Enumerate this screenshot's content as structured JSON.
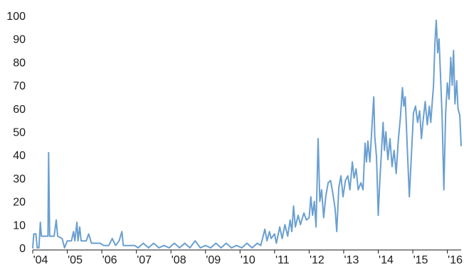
{
  "chart_data": {
    "type": "line",
    "title": "",
    "xlabel": "",
    "ylabel": "",
    "xlim": [
      2004.0,
      2016.4
    ],
    "ylim": [
      0,
      100
    ],
    "grid": false,
    "legend": "none",
    "x_ticks": [
      {
        "label": "'04",
        "value": 2004
      },
      {
        "label": "'05",
        "value": 2005
      },
      {
        "label": "'06",
        "value": 2006
      },
      {
        "label": "'07",
        "value": 2007
      },
      {
        "label": "'08",
        "value": 2008
      },
      {
        "label": "'09",
        "value": 2009
      },
      {
        "label": "'10",
        "value": 2010
      },
      {
        "label": "'11",
        "value": 2011
      },
      {
        "label": "'12",
        "value": 2012
      },
      {
        "label": "'13",
        "value": 2013
      },
      {
        "label": "'14",
        "value": 2014
      },
      {
        "label": "'15",
        "value": 2015
      },
      {
        "label": "'16",
        "value": 2016
      }
    ],
    "y_ticks": [
      0,
      10,
      20,
      30,
      40,
      50,
      60,
      70,
      80,
      90,
      100
    ],
    "series": [
      {
        "color": "#6a9fd0",
        "points": [
          [
            2004.0,
            0
          ],
          [
            2004.03,
            6
          ],
          [
            2004.09,
            6
          ],
          [
            2004.13,
            0
          ],
          [
            2004.18,
            0
          ],
          [
            2004.22,
            11
          ],
          [
            2004.25,
            5
          ],
          [
            2004.35,
            5
          ],
          [
            2004.44,
            5
          ],
          [
            2004.46,
            41
          ],
          [
            2004.49,
            5
          ],
          [
            2004.62,
            5
          ],
          [
            2004.68,
            12
          ],
          [
            2004.72,
            5
          ],
          [
            2004.85,
            4
          ],
          [
            2004.92,
            0
          ],
          [
            2005.0,
            3
          ],
          [
            2005.12,
            3
          ],
          [
            2005.18,
            7
          ],
          [
            2005.22,
            3
          ],
          [
            2005.28,
            11
          ],
          [
            2005.31,
            3
          ],
          [
            2005.36,
            9
          ],
          [
            2005.4,
            3
          ],
          [
            2005.55,
            3
          ],
          [
            2005.62,
            6
          ],
          [
            2005.7,
            2
          ],
          [
            2005.85,
            2
          ],
          [
            2005.95,
            2
          ],
          [
            2006.05,
            1
          ],
          [
            2006.2,
            1
          ],
          [
            2006.3,
            4
          ],
          [
            2006.4,
            1
          ],
          [
            2006.5,
            3
          ],
          [
            2006.58,
            7
          ],
          [
            2006.62,
            1
          ],
          [
            2006.8,
            1
          ],
          [
            2006.95,
            1
          ],
          [
            2007.05,
            0
          ],
          [
            2007.2,
            2
          ],
          [
            2007.35,
            0
          ],
          [
            2007.5,
            2
          ],
          [
            2007.65,
            0
          ],
          [
            2007.8,
            1
          ],
          [
            2007.95,
            0
          ],
          [
            2008.1,
            2
          ],
          [
            2008.25,
            0
          ],
          [
            2008.4,
            2
          ],
          [
            2008.55,
            0
          ],
          [
            2008.7,
            3
          ],
          [
            2008.85,
            0
          ],
          [
            2009.0,
            1
          ],
          [
            2009.15,
            0
          ],
          [
            2009.3,
            2
          ],
          [
            2009.45,
            0
          ],
          [
            2009.6,
            2
          ],
          [
            2009.75,
            0
          ],
          [
            2009.9,
            1
          ],
          [
            2010.05,
            0
          ],
          [
            2010.2,
            2
          ],
          [
            2010.35,
            0
          ],
          [
            2010.5,
            2
          ],
          [
            2010.6,
            1
          ],
          [
            2010.72,
            8
          ],
          [
            2010.78,
            3
          ],
          [
            2010.85,
            7
          ],
          [
            2010.9,
            4
          ],
          [
            2011.0,
            6
          ],
          [
            2011.05,
            2
          ],
          [
            2011.15,
            9
          ],
          [
            2011.22,
            4
          ],
          [
            2011.3,
            10
          ],
          [
            2011.38,
            5
          ],
          [
            2011.45,
            12
          ],
          [
            2011.5,
            7
          ],
          [
            2011.55,
            18
          ],
          [
            2011.6,
            9
          ],
          [
            2011.68,
            14
          ],
          [
            2011.75,
            10
          ],
          [
            2011.85,
            15
          ],
          [
            2011.92,
            12
          ],
          [
            2012.0,
            13
          ],
          [
            2012.05,
            22
          ],
          [
            2012.1,
            14
          ],
          [
            2012.15,
            20
          ],
          [
            2012.2,
            9
          ],
          [
            2012.26,
            47
          ],
          [
            2012.31,
            20
          ],
          [
            2012.36,
            25
          ],
          [
            2012.42,
            13
          ],
          [
            2012.48,
            22
          ],
          [
            2012.55,
            28
          ],
          [
            2012.62,
            29
          ],
          [
            2012.68,
            24
          ],
          [
            2012.75,
            17
          ],
          [
            2012.8,
            7
          ],
          [
            2012.86,
            26
          ],
          [
            2012.92,
            31
          ],
          [
            2012.98,
            22
          ],
          [
            2013.05,
            29
          ],
          [
            2013.12,
            31
          ],
          [
            2013.18,
            25
          ],
          [
            2013.25,
            37
          ],
          [
            2013.3,
            30
          ],
          [
            2013.36,
            34
          ],
          [
            2013.42,
            25
          ],
          [
            2013.5,
            28
          ],
          [
            2013.56,
            25
          ],
          [
            2013.62,
            45
          ],
          [
            2013.66,
            37
          ],
          [
            2013.7,
            46
          ],
          [
            2013.76,
            37
          ],
          [
            2013.83,
            55
          ],
          [
            2013.87,
            65
          ],
          [
            2013.9,
            48
          ],
          [
            2013.95,
            39
          ],
          [
            2014.0,
            14
          ],
          [
            2014.05,
            30
          ],
          [
            2014.1,
            43
          ],
          [
            2014.14,
            54
          ],
          [
            2014.18,
            42
          ],
          [
            2014.22,
            50
          ],
          [
            2014.28,
            38
          ],
          [
            2014.34,
            47
          ],
          [
            2014.4,
            35
          ],
          [
            2014.46,
            42
          ],
          [
            2014.52,
            32
          ],
          [
            2014.58,
            46
          ],
          [
            2014.64,
            56
          ],
          [
            2014.7,
            69
          ],
          [
            2014.74,
            61
          ],
          [
            2014.78,
            65
          ],
          [
            2014.84,
            43
          ],
          [
            2014.9,
            22
          ],
          [
            2014.96,
            40
          ],
          [
            2015.02,
            58
          ],
          [
            2015.08,
            61
          ],
          [
            2015.14,
            54
          ],
          [
            2015.2,
            59
          ],
          [
            2015.25,
            47
          ],
          [
            2015.3,
            55
          ],
          [
            2015.36,
            63
          ],
          [
            2015.42,
            53
          ],
          [
            2015.48,
            61
          ],
          [
            2015.52,
            54
          ],
          [
            2015.56,
            62
          ],
          [
            2015.6,
            70
          ],
          [
            2015.64,
            88
          ],
          [
            2015.68,
            98
          ],
          [
            2015.72,
            84
          ],
          [
            2015.76,
            90
          ],
          [
            2015.8,
            75
          ],
          [
            2015.85,
            56
          ],
          [
            2015.9,
            25
          ],
          [
            2015.95,
            58
          ],
          [
            2016.0,
            71
          ],
          [
            2016.05,
            64
          ],
          [
            2016.1,
            82
          ],
          [
            2016.14,
            70
          ],
          [
            2016.18,
            85
          ],
          [
            2016.22,
            62
          ],
          [
            2016.27,
            72
          ],
          [
            2016.31,
            60
          ],
          [
            2016.36,
            57
          ],
          [
            2016.4,
            44
          ]
        ]
      }
    ]
  }
}
